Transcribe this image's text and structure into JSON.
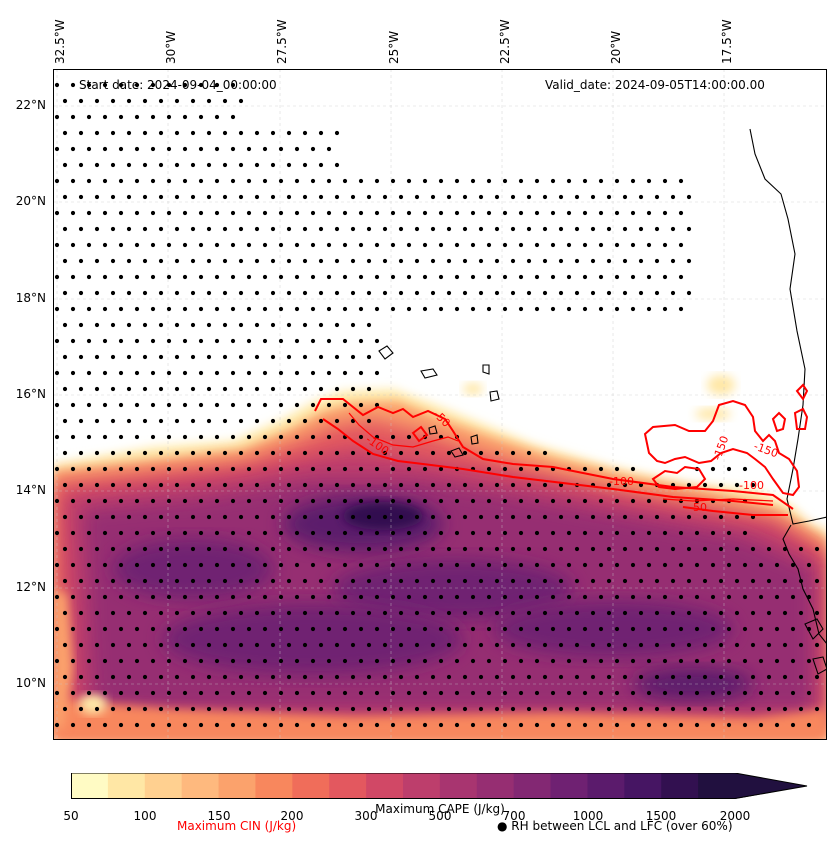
{
  "map": {
    "start_date": "Start date: 2024-09-04_00:00:00",
    "valid_date": "Valid_date: 2024-09-05T14:00:00.00",
    "lon_labels": [
      "32.5°W",
      "30°W",
      "27.5°W",
      "25°W",
      "22.5°W",
      "20°W",
      "17.5°W"
    ],
    "lat_labels": [
      "22°N",
      "20°N",
      "18°N",
      "16°N",
      "14°N",
      "12°N",
      "10°N"
    ],
    "contour_labels": [
      "-100",
      "-50",
      "-150",
      "-100",
      "-50",
      "-100",
      "-150"
    ],
    "stipple_color": "#000000",
    "contour_color": "#ff0000",
    "coastline_color": "#000000"
  },
  "colorbar": {
    "title": "Maximum CAPE (J/kg)",
    "tick_labels": [
      "50",
      "100",
      "150",
      "200",
      "300",
      "500",
      "700",
      "1000",
      "1500",
      "2000"
    ],
    "colors": [
      "#fffbc4",
      "#ffe7a5",
      "#ffd090",
      "#feb97e",
      "#fba26c",
      "#f8875d",
      "#f06d5a",
      "#e3585f",
      "#d14866",
      "#bd3e6c",
      "#a83570",
      "#962e72",
      "#832873",
      "#6f2172",
      "#5b1b6c",
      "#461563",
      "#321050",
      "#21103f"
    ],
    "extend": "max"
  },
  "legend": {
    "cin_label": "Maximum CIN (J/kg)",
    "cin_color": "#ff0000",
    "rh_label": "● RH between LCL and LFC (over 60%)"
  }
}
